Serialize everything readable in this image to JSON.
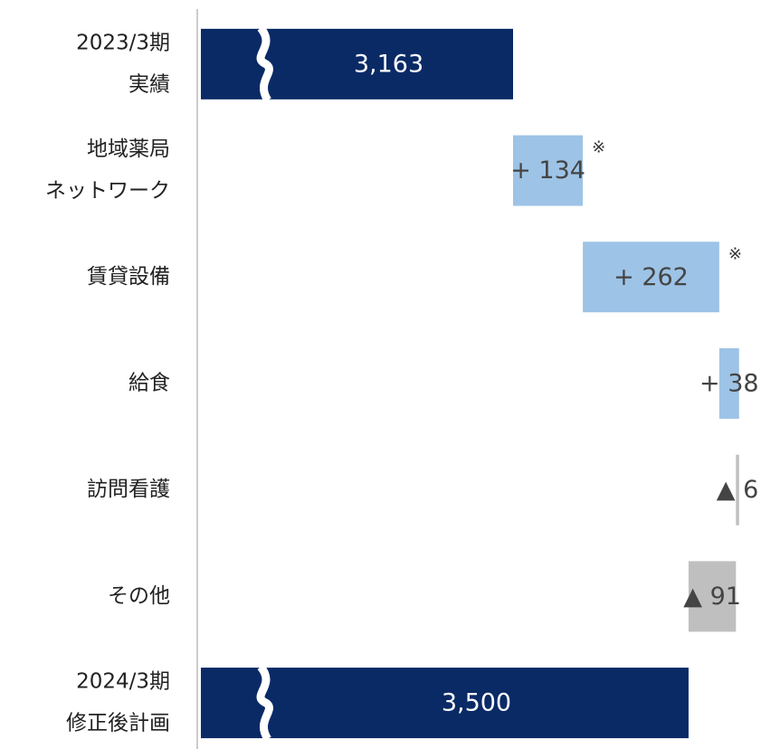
{
  "chart_data": {
    "type": "waterfall",
    "categories": [
      [
        "2023/3期",
        "実績"
      ],
      [
        "地域薬局",
        "ネットワーク"
      ],
      [
        "賃貸設備"
      ],
      [
        "給食"
      ],
      [
        "訪問看護"
      ],
      [
        "その他"
      ],
      [
        "2024/3期",
        "修正後計画"
      ]
    ],
    "values": [
      3163,
      134,
      262,
      38,
      -6,
      -91,
      3500
    ],
    "value_labels": [
      "3,163",
      "+ 134",
      "+ 262",
      "+ 38",
      "▲ 6",
      "▲ 91",
      "3,500"
    ],
    "colors": [
      "#0a2a66",
      "#9dc3e6",
      "#9dc3e6",
      "#9dc3e6",
      "#bfbfbf",
      "#bfbfbf",
      "#0a2a66"
    ],
    "annotations": [
      {
        "index": 1,
        "text": "※"
      },
      {
        "index": 2,
        "text": "※"
      }
    ],
    "xlim": [
      2560,
      3620
    ]
  }
}
